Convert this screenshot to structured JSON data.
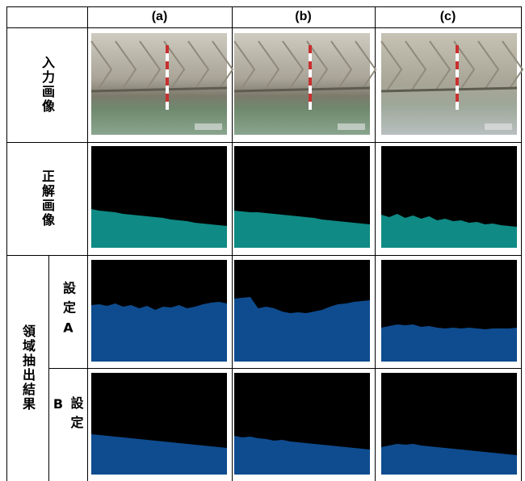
{
  "header": {
    "columns": [
      "(a)",
      "(b)",
      "(c)"
    ]
  },
  "rows": [
    {
      "label": "入力画像"
    },
    {
      "label": "正解画像"
    },
    {
      "label": "領域抽出結果",
      "sub": [
        "設定A",
        "設定B"
      ]
    }
  ]
}
